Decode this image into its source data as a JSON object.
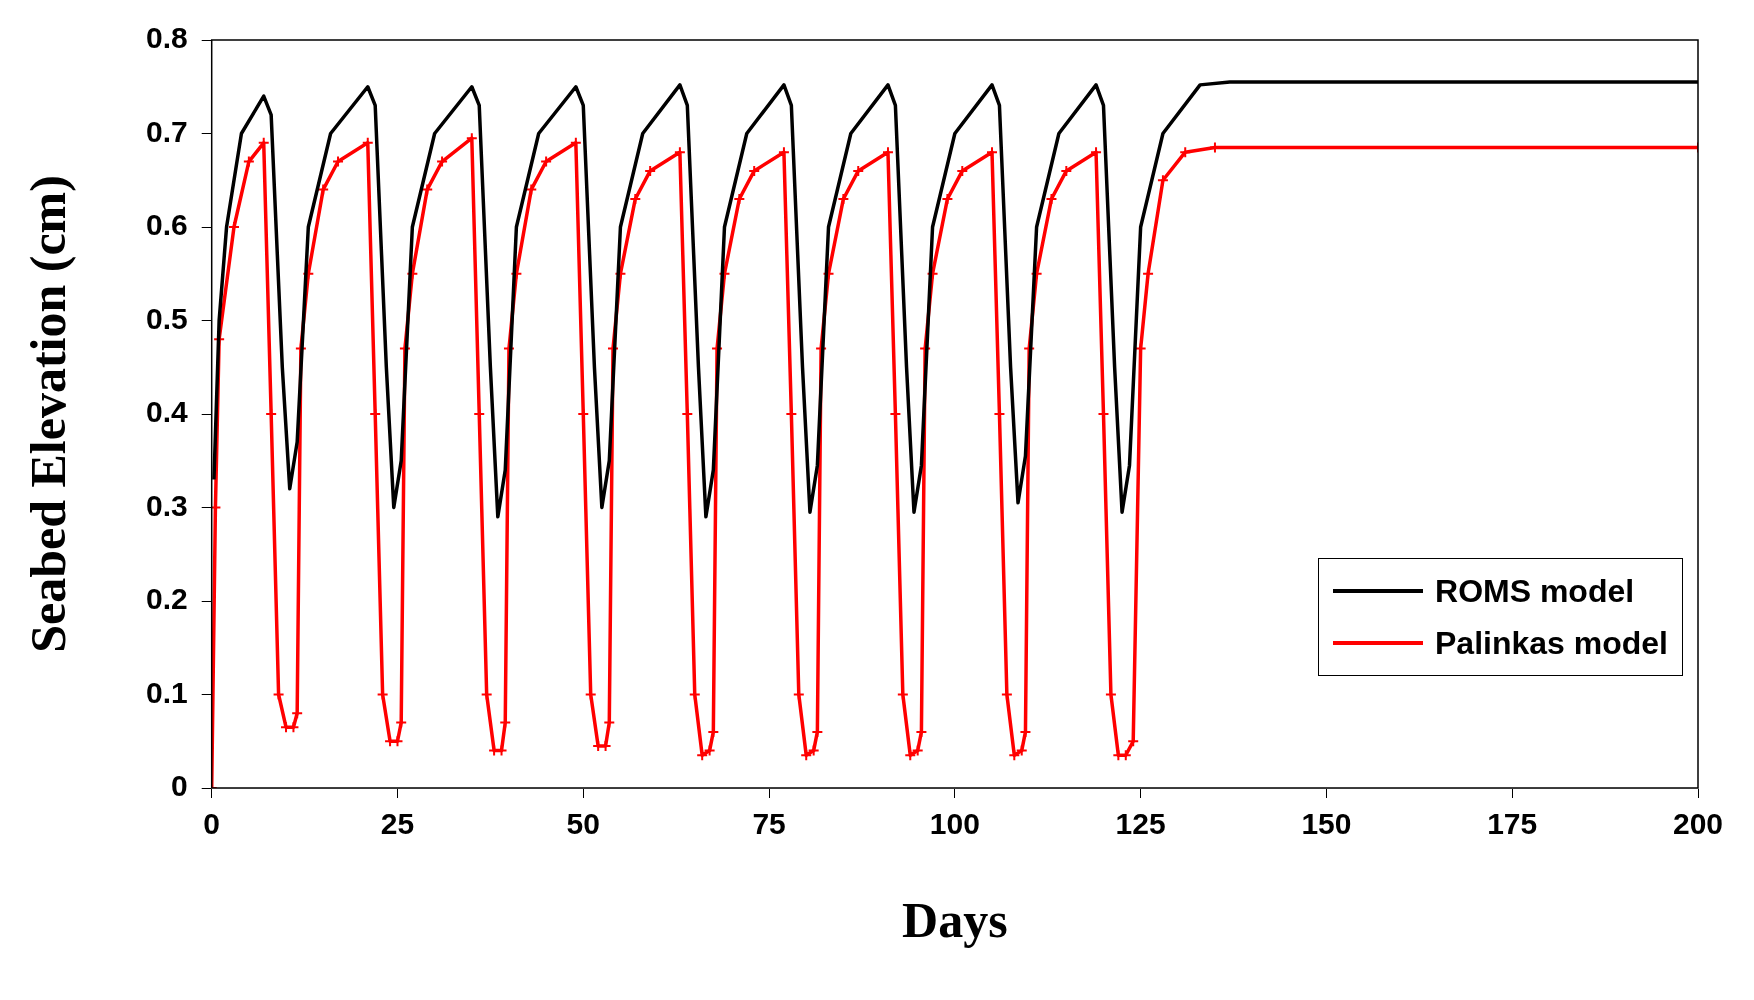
{
  "chart_data": {
    "type": "line",
    "xlabel": "Days",
    "ylabel": "Seabed Elevation (cm)",
    "xlim": [
      0,
      200
    ],
    "xticks": [
      0,
      25,
      50,
      75,
      100,
      125,
      150,
      175,
      200
    ],
    "ylim": [
      0,
      0.8
    ],
    "yticks": [
      0,
      0.1,
      0.2,
      0.3,
      0.4,
      0.5,
      0.6,
      0.7,
      0.8
    ],
    "grid": false,
    "legend": "bottom right",
    "line_style": "solid",
    "series": [
      {
        "name": "ROMS model",
        "color": "#000000",
        "marker": "none",
        "x": [
          0.3,
          1,
          2,
          4,
          7,
          8,
          9.5,
          10.5,
          11.5,
          13,
          16,
          21,
          22,
          23.5,
          24.5,
          25.5,
          27,
          30,
          35,
          36,
          37.5,
          38.5,
          39.5,
          41,
          44,
          49,
          50,
          51.5,
          52.5,
          53.5,
          55,
          58,
          63,
          64,
          65.5,
          66.5,
          67.5,
          69,
          72,
          77,
          78,
          79.5,
          80.5,
          81.5,
          83,
          86,
          91,
          92,
          93.5,
          94.5,
          95.5,
          97,
          100,
          105,
          106,
          107.5,
          108.5,
          109.5,
          111,
          114,
          119,
          120,
          121.5,
          122.5,
          123.5,
          125,
          128,
          133,
          137,
          200
        ],
        "values": [
          0.33,
          0.5,
          0.6,
          0.7,
          0.74,
          0.72,
          0.45,
          0.32,
          0.37,
          0.6,
          0.7,
          0.75,
          0.73,
          0.45,
          0.3,
          0.35,
          0.6,
          0.7,
          0.75,
          0.73,
          0.45,
          0.29,
          0.34,
          0.6,
          0.7,
          0.75,
          0.73,
          0.45,
          0.3,
          0.35,
          0.6,
          0.7,
          0.752,
          0.73,
          0.45,
          0.29,
          0.34,
          0.6,
          0.7,
          0.752,
          0.73,
          0.45,
          0.295,
          0.345,
          0.6,
          0.7,
          0.752,
          0.73,
          0.45,
          0.295,
          0.345,
          0.6,
          0.7,
          0.752,
          0.73,
          0.45,
          0.305,
          0.355,
          0.6,
          0.7,
          0.752,
          0.73,
          0.45,
          0.295,
          0.345,
          0.6,
          0.7,
          0.752,
          0.755,
          0.755
        ]
      },
      {
        "name": "Palinkas model",
        "color": "#ff0000",
        "marker": "cross",
        "x": [
          0,
          0.5,
          1,
          3,
          5,
          7,
          8,
          9,
          10,
          11,
          11.5,
          12,
          13,
          15,
          17,
          21,
          22,
          23,
          24,
          25,
          25.5,
          26,
          27,
          29,
          31,
          35,
          36,
          37,
          38,
          39,
          39.5,
          40,
          41,
          43,
          45,
          49,
          50,
          51,
          52,
          53,
          53.5,
          54,
          55,
          57,
          59,
          63,
          64,
          65,
          66,
          67,
          67.5,
          68,
          69,
          71,
          73,
          77,
          78,
          79,
          80,
          81,
          81.5,
          82,
          83,
          85,
          87,
          91,
          92,
          93,
          94,
          95,
          95.5,
          96,
          97,
          99,
          101,
          105,
          106,
          107,
          108,
          109,
          109.5,
          110,
          111,
          113,
          115,
          119,
          120,
          121,
          122,
          123,
          124,
          125,
          126,
          128,
          131,
          135,
          200
        ],
        "values": [
          0,
          0.3,
          0.48,
          0.6,
          0.67,
          0.69,
          0.4,
          0.1,
          0.065,
          0.065,
          0.08,
          0.47,
          0.55,
          0.64,
          0.67,
          0.69,
          0.4,
          0.1,
          0.05,
          0.05,
          0.07,
          0.47,
          0.55,
          0.64,
          0.67,
          0.695,
          0.4,
          0.1,
          0.04,
          0.04,
          0.07,
          0.47,
          0.55,
          0.64,
          0.67,
          0.69,
          0.4,
          0.1,
          0.045,
          0.045,
          0.07,
          0.47,
          0.55,
          0.63,
          0.66,
          0.68,
          0.4,
          0.1,
          0.035,
          0.04,
          0.06,
          0.47,
          0.55,
          0.63,
          0.66,
          0.68,
          0.4,
          0.1,
          0.035,
          0.04,
          0.06,
          0.47,
          0.55,
          0.63,
          0.66,
          0.68,
          0.4,
          0.1,
          0.035,
          0.04,
          0.06,
          0.47,
          0.55,
          0.63,
          0.66,
          0.68,
          0.4,
          0.1,
          0.035,
          0.04,
          0.06,
          0.47,
          0.55,
          0.63,
          0.66,
          0.68,
          0.4,
          0.1,
          0.035,
          0.035,
          0.05,
          0.47,
          0.55,
          0.65,
          0.68,
          0.685,
          0.685
        ]
      }
    ]
  }
}
